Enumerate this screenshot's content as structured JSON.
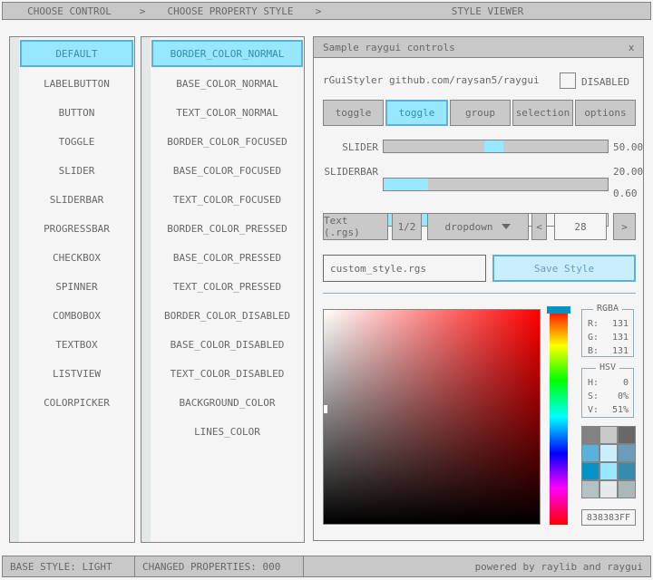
{
  "colors": {
    "accent_border": "#5bb2d9",
    "accent_fill": "#97e8ff",
    "accent_text": "#368baf",
    "panel_border": "#838383",
    "bar_background": "#c8c8c8",
    "background": "#f5f5f5",
    "text": "#686868",
    "line": "#90abb5",
    "hue_selector": "#0492c7"
  },
  "top_bar": {
    "choose_control": "CHOOSE CONTROL",
    "chevron1": ">",
    "choose_property_style": "CHOOSE PROPERTY STYLE",
    "chevron2": ">",
    "style_viewer": "STYLE VIEWER"
  },
  "controls_list": {
    "selected": "DEFAULT",
    "items": [
      "DEFAULT",
      "LABELBUTTON",
      "BUTTON",
      "TOGGLE",
      "SLIDER",
      "SLIDERBAR",
      "PROGRESSBAR",
      "CHECKBOX",
      "SPINNER",
      "COMBOBOX",
      "TEXTBOX",
      "LISTVIEW",
      "COLORPICKER"
    ]
  },
  "properties_list": {
    "selected": "BORDER_COLOR_NORMAL",
    "items": [
      "BORDER_COLOR_NORMAL",
      "BASE_COLOR_NORMAL",
      "TEXT_COLOR_NORMAL",
      "BORDER_COLOR_FOCUSED",
      "BASE_COLOR_FOCUSED",
      "TEXT_COLOR_FOCUSED",
      "BORDER_COLOR_PRESSED",
      "BASE_COLOR_PRESSED",
      "TEXT_COLOR_PRESSED",
      "BORDER_COLOR_DISABLED",
      "BASE_COLOR_DISABLED",
      "TEXT_COLOR_DISABLED",
      "BACKGROUND_COLOR",
      "LINES_COLOR"
    ]
  },
  "style_viewer": {
    "window_title": "Sample raygui controls",
    "close_label": "x",
    "app_name": "rGuiStyler",
    "repo_link": "github.com/raysan5/raygui",
    "disabled_label": "DISABLED",
    "toggle_group": {
      "selected_index": 1,
      "options": [
        "toggle",
        "toggle",
        "group",
        "selection",
        "options"
      ]
    },
    "slider": {
      "label": "SLIDER",
      "value": "50.00",
      "knob_percent": 45
    },
    "sliderbar": {
      "label": "SLIDERBAR",
      "value": "20.00",
      "fill_percent": 20
    },
    "progressbar": {
      "value": "0.60",
      "fill_percent": 60
    },
    "text_rgs_button": "Text (.rgs)",
    "half_button": "1/2",
    "dropdown": {
      "selected": "dropdown"
    },
    "spinner": {
      "decrement": "<",
      "value": "28",
      "increment": ">"
    },
    "filename_input": {
      "value": "custom_style.rgs"
    },
    "save_button": "Save Style",
    "color_panel": {
      "rgba_box": {
        "title": "RGBA",
        "rows": [
          {
            "label": "R:",
            "value": "131"
          },
          {
            "label": "G:",
            "value": "131"
          },
          {
            "label": "B:",
            "value": "131"
          }
        ]
      },
      "hsv_box": {
        "title": "HSV",
        "rows": [
          {
            "label": "H:",
            "value": "0"
          },
          {
            "label": "S:",
            "value": "0%"
          },
          {
            "label": "V:",
            "value": "51%"
          }
        ]
      },
      "swatches": [
        "#838383",
        "#c9c9c9",
        "#686868",
        "#5bb2d9",
        "#c9effe",
        "#6c9bbc",
        "#0492c7",
        "#97e8ff",
        "#368baf",
        "#b5c1c2",
        "#e6e9e9",
        "#aeb7b8"
      ],
      "hex_value": "838383FF"
    }
  },
  "status_bar": {
    "base_style": "BASE STYLE: LIGHT",
    "changed_properties": "CHANGED PROPERTIES: 000",
    "credits": "powered by raylib and raygui"
  }
}
